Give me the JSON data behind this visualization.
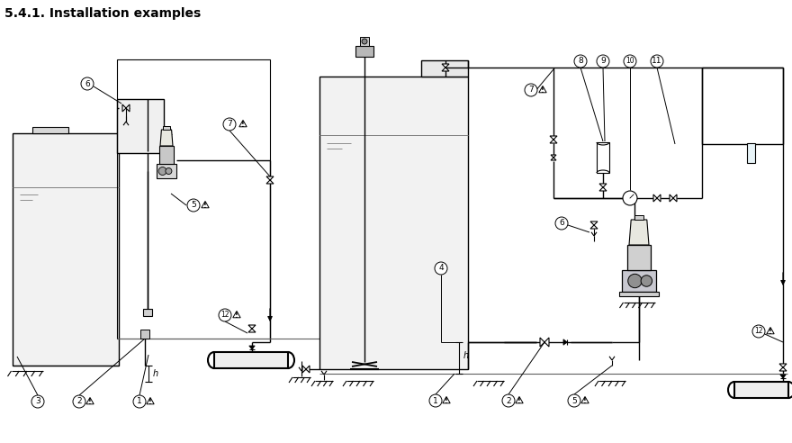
{
  "title": "5.4.1. Installation examples",
  "title_fontsize": 10,
  "title_fontweight": "bold",
  "bg_color": "#ffffff",
  "fig_width": 8.8,
  "fig_height": 4.92
}
